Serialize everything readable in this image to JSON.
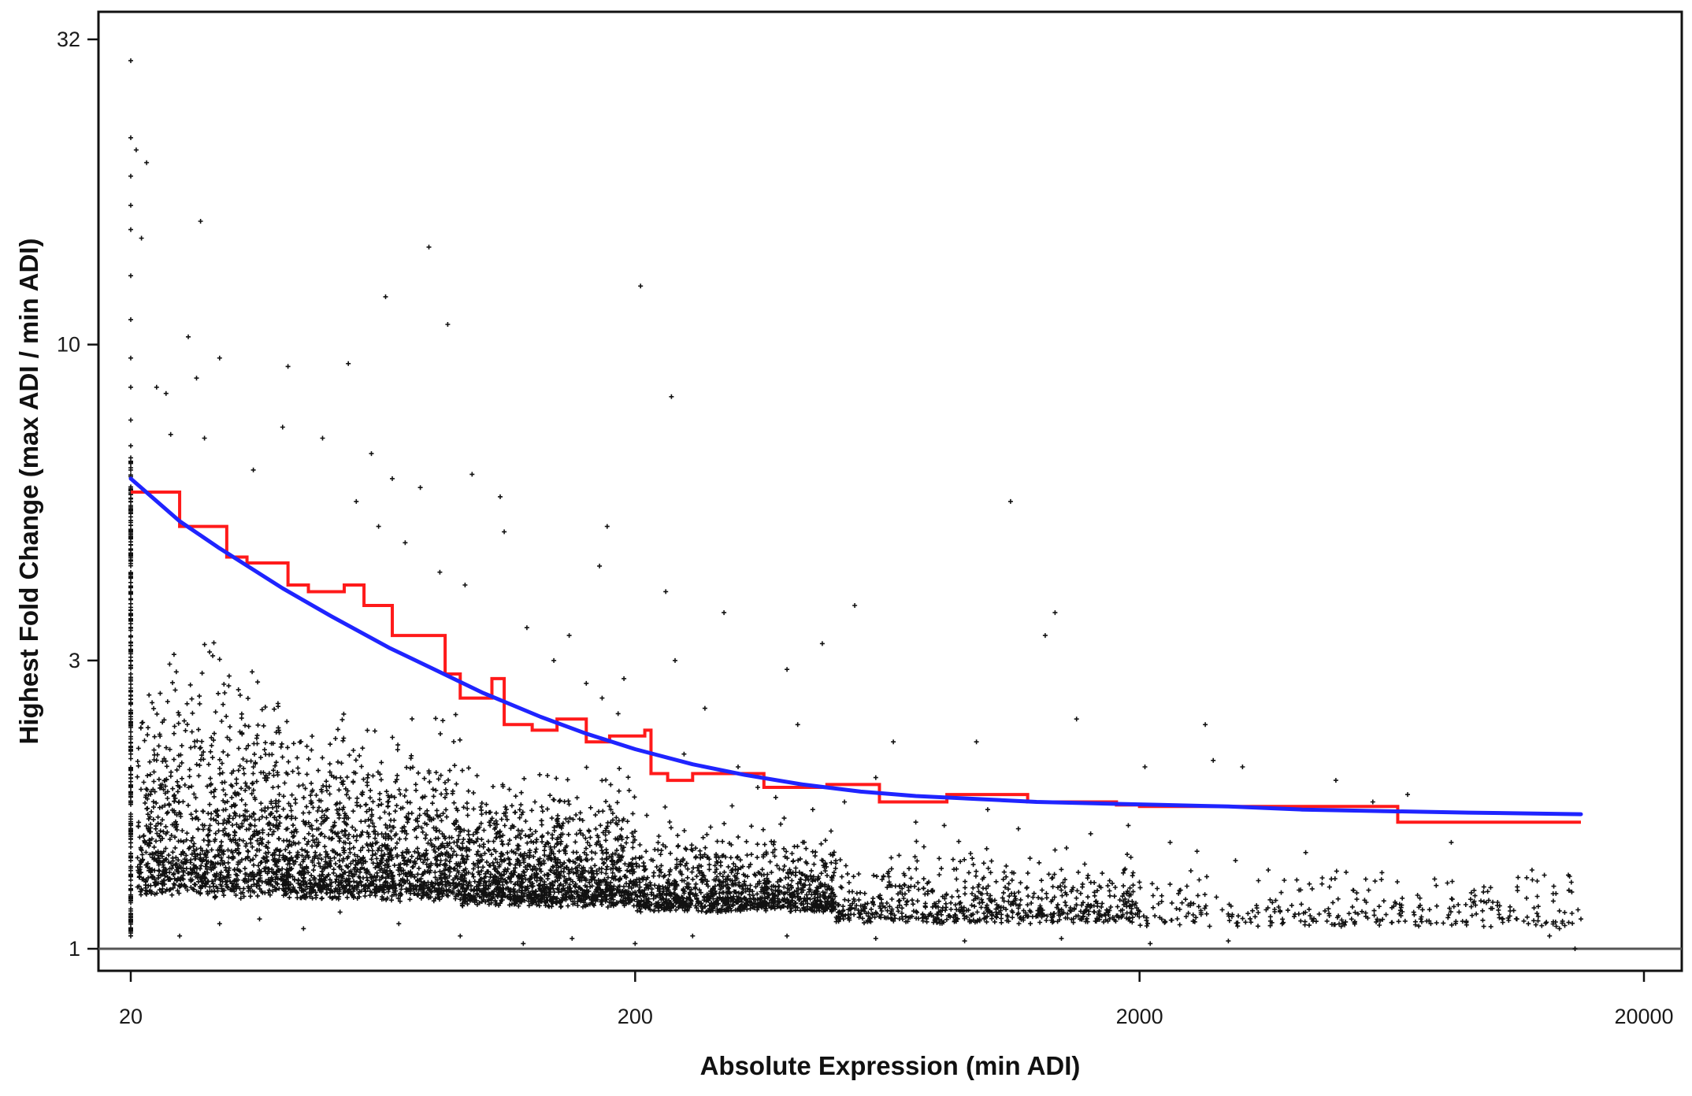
{
  "chart_data": {
    "type": "scatter",
    "title": "",
    "xlabel": "Absolute Expression (min ADI)",
    "ylabel": "Highest Fold Change (max ADI / min ADI)",
    "x_scale": "log",
    "y_scale": "log",
    "xlim": [
      18.5,
      22000
    ],
    "ylim": [
      0.95,
      36
    ],
    "x_ticks": [
      20,
      200,
      2000,
      20000
    ],
    "x_tick_labels": [
      "20",
      "200",
      "2000",
      "20000"
    ],
    "y_ticks": [
      1,
      3,
      10,
      32
    ],
    "y_tick_labels": [
      "1",
      "3",
      "10",
      "32"
    ],
    "reference_line_y": 1,
    "grid": false,
    "legend": "none",
    "colors": {
      "points": "#111111",
      "step_series": "#ff1a1a",
      "curve_series": "#1f24ff",
      "frame": "#111111",
      "reference_line": "#555555"
    },
    "series": [
      {
        "kind": "step",
        "x": [
          20,
          23,
          25,
          31,
          34,
          41,
          45,
          53,
          58,
          66,
          72,
          84,
          90,
          104,
          110,
          125,
          140,
          160,
          178,
          209,
          215,
          232,
          260,
          295,
          360,
          480,
          610,
          830,
          1200,
          1800,
          2000,
          3700,
          6500,
          15000
        ],
        "y": [
          5.7,
          5.7,
          5.0,
          4.45,
          4.35,
          4.0,
          3.9,
          4.0,
          3.7,
          3.3,
          3.3,
          2.85,
          2.6,
          2.8,
          2.35,
          2.3,
          2.4,
          2.2,
          2.25,
          2.3,
          1.95,
          1.9,
          1.95,
          1.95,
          1.85,
          1.87,
          1.75,
          1.8,
          1.75,
          1.73,
          1.72,
          1.72,
          1.62,
          1.62
        ]
      },
      {
        "kind": "curve",
        "x": [
          20,
          25,
          30,
          40,
          50,
          65,
          80,
          100,
          130,
          160,
          200,
          260,
          330,
          430,
          560,
          720,
          950,
          1250,
          1650,
          2200,
          3000,
          4200,
          6000,
          9000,
          15000
        ],
        "y": [
          6.0,
          5.1,
          4.6,
          3.95,
          3.55,
          3.15,
          2.9,
          2.65,
          2.42,
          2.27,
          2.14,
          2.02,
          1.94,
          1.87,
          1.82,
          1.79,
          1.77,
          1.75,
          1.74,
          1.73,
          1.72,
          1.7,
          1.69,
          1.68,
          1.67
        ]
      }
    ],
    "scatter_points": [
      [
        20,
        29.5
      ],
      [
        20,
        22
      ],
      [
        20,
        19
      ],
      [
        20,
        17
      ],
      [
        20,
        15.5
      ],
      [
        20,
        13
      ],
      [
        20,
        11
      ],
      [
        20,
        9.5
      ],
      [
        20,
        8.5
      ],
      [
        20,
        7.5
      ],
      [
        20,
        6.8
      ],
      [
        20,
        6.2
      ],
      [
        20,
        5.5
      ],
      [
        20,
        4.9
      ],
      [
        20,
        4.4
      ],
      [
        20,
        3.9
      ],
      [
        20,
        3.4
      ],
      [
        20,
        3.0
      ],
      [
        20,
        2.7
      ],
      [
        20,
        2.4
      ],
      [
        20,
        2.1
      ],
      [
        20,
        1.85
      ],
      [
        20,
        1.6
      ],
      [
        20,
        1.4
      ],
      [
        20,
        1.2
      ],
      [
        20,
        1.05
      ],
      [
        20.5,
        21
      ],
      [
        21.5,
        20
      ],
      [
        21,
        15
      ],
      [
        22.5,
        8.5
      ],
      [
        23.5,
        8.3
      ],
      [
        27.5,
        16
      ],
      [
        26,
        10.3
      ],
      [
        27,
        8.8
      ],
      [
        30,
        9.5
      ],
      [
        41,
        9.2
      ],
      [
        54,
        9.3
      ],
      [
        60,
        6.6
      ],
      [
        64,
        12
      ],
      [
        108,
        5.6
      ],
      [
        78,
        14.5
      ],
      [
        85,
        10.8
      ],
      [
        205,
        12.5
      ],
      [
        236,
        8.2
      ],
      [
        176,
        5.0
      ],
      [
        230,
        3.9
      ],
      [
        1110,
        5.5
      ],
      [
        1360,
        3.6
      ],
      [
        1300,
        3.3
      ],
      [
        545,
        3.7
      ],
      [
        470,
        3.2
      ],
      [
        400,
        2.9
      ],
      [
        420,
        2.35
      ],
      [
        650,
        2.2
      ],
      [
        2700,
        2.35
      ],
      [
        1500,
        2.4
      ],
      [
        950,
        2.2
      ],
      [
        2050,
        2.0
      ],
      [
        2800,
        2.05
      ],
      [
        3200,
        2.0
      ],
      [
        4900,
        1.9
      ],
      [
        5800,
        1.75
      ],
      [
        6800,
        1.8
      ],
      [
        1000,
        1.7
      ],
      [
        600,
        1.92
      ],
      [
        8300,
        1.5
      ],
      [
        12000,
        1.35
      ],
      [
        14200,
        1.25
      ],
      [
        14600,
        1.0
      ],
      [
        13000,
        1.05
      ],
      [
        9500,
        1.2
      ],
      [
        240,
        3.0
      ],
      [
        190,
        2.8
      ],
      [
        148,
        3.3
      ],
      [
        300,
        3.6
      ],
      [
        170,
        4.3
      ],
      [
        110,
        4.9
      ],
      [
        95,
        6.1
      ],
      [
        75,
        5.8
      ],
      [
        66,
        6.0
      ],
      [
        35,
        6.2
      ],
      [
        28,
        7.0
      ],
      [
        24,
        7.1
      ],
      [
        40,
        7.3
      ],
      [
        48,
        7.0
      ],
      [
        56,
        5.5
      ],
      [
        62,
        5.0
      ],
      [
        70,
        4.7
      ],
      [
        82,
        4.2
      ],
      [
        92,
        4.0
      ],
      [
        122,
        3.4
      ],
      [
        138,
        3.0
      ],
      [
        160,
        2.75
      ],
      [
        172,
        2.6
      ],
      [
        185,
        2.45
      ],
      [
        250,
        2.1
      ],
      [
        275,
        2.5
      ],
      [
        320,
        2.0
      ],
      [
        350,
        1.85
      ],
      [
        380,
        1.78
      ],
      [
        450,
        1.7
      ],
      [
        520,
        1.75
      ],
      [
        720,
        1.62
      ],
      [
        820,
        1.6
      ],
      [
        1150,
        1.58
      ],
      [
        1600,
        1.55
      ],
      [
        1900,
        1.6
      ],
      [
        2300,
        1.5
      ],
      [
        2600,
        1.45
      ],
      [
        3100,
        1.4
      ],
      [
        3600,
        1.35
      ],
      [
        4100,
        1.3
      ],
      [
        4600,
        1.28
      ],
      [
        5300,
        1.25
      ],
      [
        6100,
        1.2
      ],
      [
        7200,
        1.18
      ],
      [
        8600,
        1.15
      ],
      [
        10500,
        1.12
      ],
      [
        11800,
        1.1
      ],
      [
        13600,
        1.08
      ],
      [
        15000,
        1.12
      ],
      [
        14800,
        1.16
      ],
      [
        25,
        1.05
      ],
      [
        30,
        1.1
      ],
      [
        36,
        1.12
      ],
      [
        44,
        1.08
      ],
      [
        52,
        1.15
      ],
      [
        68,
        1.1
      ],
      [
        90,
        1.05
      ],
      [
        120,
        1.02
      ],
      [
        150,
        1.04
      ],
      [
        200,
        1.02
      ],
      [
        260,
        1.05
      ],
      [
        400,
        1.05
      ],
      [
        600,
        1.04
      ],
      [
        900,
        1.03
      ],
      [
        1400,
        1.04
      ],
      [
        2100,
        1.02
      ],
      [
        3000,
        1.03
      ]
    ],
    "point_cloud": [
      {
        "x_range": [
          20.6,
          40
        ],
        "y_range": [
          1.08,
          3.8
        ],
        "count": 1100
      },
      {
        "x_range": [
          40,
          90
        ],
        "y_range": [
          1.1,
          2.8
        ],
        "count": 1300
      },
      {
        "x_range": [
          90,
          200
        ],
        "y_range": [
          1.1,
          2.2
        ],
        "count": 1300
      },
      {
        "x_range": [
          200,
          500
        ],
        "y_range": [
          1.1,
          1.75
        ],
        "count": 1100
      },
      {
        "x_range": [
          500,
          2000
        ],
        "y_range": [
          1.06,
          1.6
        ],
        "count": 700
      },
      {
        "x_range": [
          2000,
          14500
        ],
        "y_range": [
          1.05,
          1.5
        ],
        "count": 320
      }
    ]
  }
}
